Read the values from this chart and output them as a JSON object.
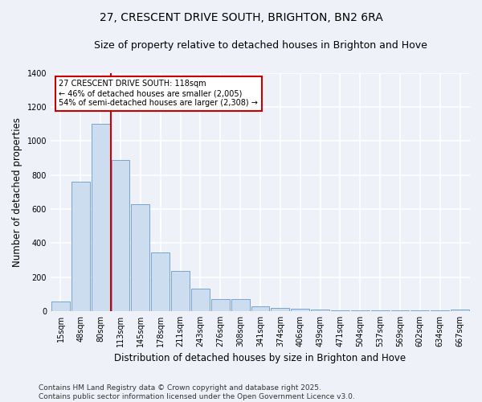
{
  "title": "27, CRESCENT DRIVE SOUTH, BRIGHTON, BN2 6RA",
  "subtitle": "Size of property relative to detached houses in Brighton and Hove",
  "xlabel": "Distribution of detached houses by size in Brighton and Hove",
  "ylabel": "Number of detached properties",
  "categories": [
    "15sqm",
    "48sqm",
    "80sqm",
    "113sqm",
    "145sqm",
    "178sqm",
    "211sqm",
    "243sqm",
    "276sqm",
    "308sqm",
    "341sqm",
    "374sqm",
    "406sqm",
    "439sqm",
    "471sqm",
    "504sqm",
    "537sqm",
    "569sqm",
    "602sqm",
    "634sqm",
    "667sqm"
  ],
  "values": [
    55,
    760,
    1100,
    890,
    630,
    345,
    235,
    130,
    70,
    70,
    30,
    20,
    15,
    10,
    5,
    3,
    3,
    3,
    3,
    3,
    8
  ],
  "bar_color": "#ccddf0",
  "bar_edge_color": "#6699cc",
  "vline_x_index": 3,
  "vline_color": "#cc0000",
  "annotation_text": "27 CRESCENT DRIVE SOUTH: 118sqm\n← 46% of detached houses are smaller (2,005)\n54% of semi-detached houses are larger (2,308) →",
  "annotation_box_color": "#cc0000",
  "background_color": "#eef2f8",
  "grid_color": "#ffffff",
  "ylim": [
    0,
    1400
  ],
  "yticks": [
    0,
    200,
    400,
    600,
    800,
    1000,
    1200,
    1400
  ],
  "footer": "Contains HM Land Registry data © Crown copyright and database right 2025.\nContains public sector information licensed under the Open Government Licence v3.0.",
  "title_fontsize": 10,
  "subtitle_fontsize": 9,
  "tick_fontsize": 7,
  "label_fontsize": 8.5,
  "footer_fontsize": 6.5
}
